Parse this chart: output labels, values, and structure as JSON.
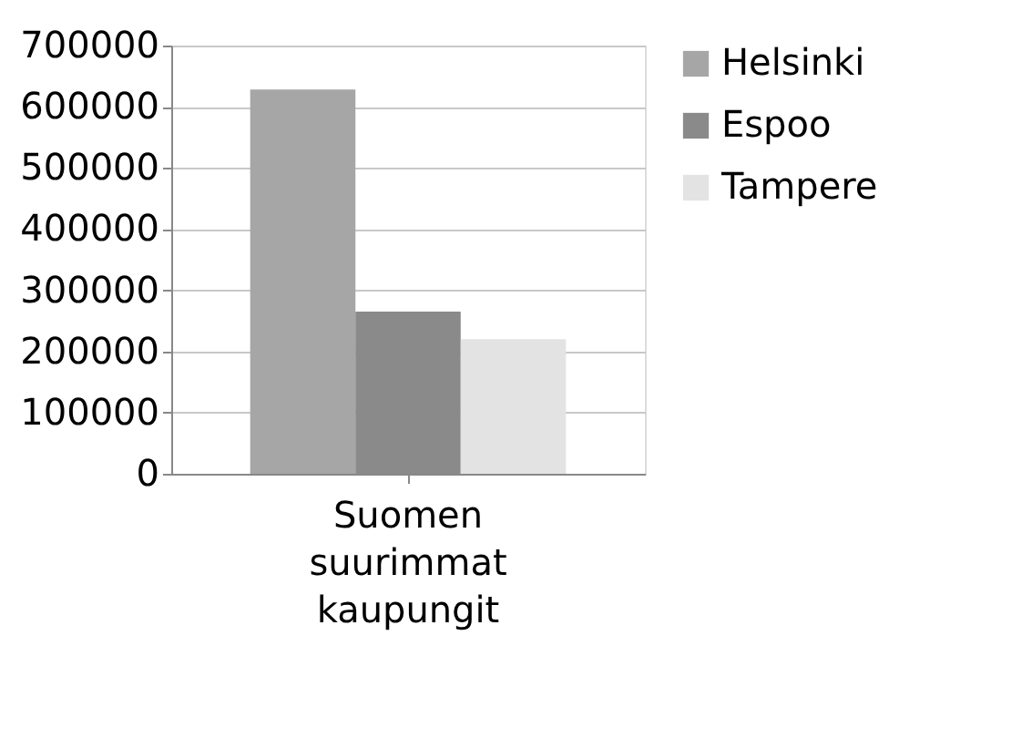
{
  "chart_data": {
    "type": "bar",
    "categories": [
      "Suomen suurimmat kaupungit"
    ],
    "series": [
      {
        "name": "Helsinki",
        "color": "#a6a6a6",
        "values": [
          628000
        ]
      },
      {
        "name": "Espoo",
        "color": "#8a8a8a",
        "values": [
          265000
        ]
      },
      {
        "name": "Tampere",
        "color": "#e3e3e3",
        "values": [
          220000
        ]
      }
    ],
    "ylim": [
      0,
      700000
    ],
    "yticks": [
      0,
      100000,
      200000,
      300000,
      400000,
      500000,
      600000,
      700000
    ],
    "grid": "y",
    "legend": "right"
  }
}
